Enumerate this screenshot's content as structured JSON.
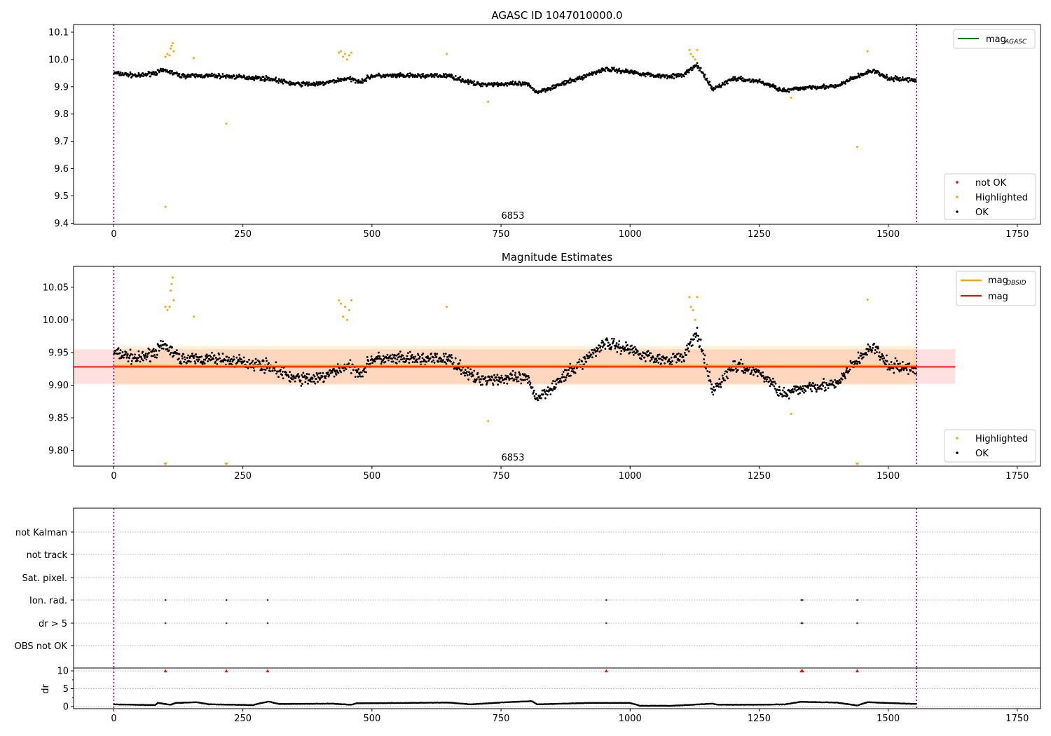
{
  "chart_data": [
    {
      "type": "scatter",
      "title": "AGASC ID 1047010000.0",
      "xlim": [
        -78,
        1795
      ],
      "ylim": [
        9.396,
        10.128
      ],
      "xticks": [
        0,
        250,
        500,
        750,
        1000,
        1250,
        1500,
        1750
      ],
      "yticks": [
        9.4,
        9.5,
        9.6,
        9.7,
        9.8,
        9.9,
        10.0,
        10.1
      ],
      "ytick_labels": [
        "9.4",
        "9.5",
        "9.6",
        "9.7",
        "9.8",
        "9.9",
        "10.0",
        "10.1"
      ],
      "obsid_label": "6853",
      "vlines": [
        0,
        1555
      ],
      "line_legend": [
        {
          "label": "mag",
          "sub": "AGASC",
          "color": "#008000"
        }
      ],
      "marker_legend": [
        {
          "label": "not OK",
          "color": "#ff0000"
        },
        {
          "label": "Highlighted",
          "color": "#ffa500"
        },
        {
          "label": "OK",
          "color": "#000000"
        }
      ],
      "trend": [
        [
          0,
          9.95
        ],
        [
          50,
          9.94
        ],
        [
          100,
          9.96
        ],
        [
          130,
          9.94
        ],
        [
          200,
          9.94
        ],
        [
          300,
          9.93
        ],
        [
          350,
          9.91
        ],
        [
          400,
          9.91
        ],
        [
          450,
          9.93
        ],
        [
          480,
          9.92
        ],
        [
          500,
          9.94
        ],
        [
          600,
          9.94
        ],
        [
          650,
          9.94
        ],
        [
          700,
          9.91
        ],
        [
          800,
          9.91
        ],
        [
          820,
          9.88
        ],
        [
          900,
          9.93
        ],
        [
          950,
          9.965
        ],
        [
          1000,
          9.955
        ],
        [
          1050,
          9.94
        ],
        [
          1100,
          9.94
        ],
        [
          1130,
          9.98
        ],
        [
          1160,
          9.89
        ],
        [
          1200,
          9.93
        ],
        [
          1250,
          9.92
        ],
        [
          1300,
          9.885
        ],
        [
          1350,
          9.9
        ],
        [
          1400,
          9.9
        ],
        [
          1430,
          9.93
        ],
        [
          1470,
          9.96
        ],
        [
          1500,
          9.93
        ],
        [
          1555,
          9.925
        ]
      ],
      "highlighted": [
        [
          100,
          10.01
        ],
        [
          104,
          10.02
        ],
        [
          108,
          10.015
        ],
        [
          110,
          10.04
        ],
        [
          112,
          10.05
        ],
        [
          114,
          10.06
        ],
        [
          116,
          10.03
        ],
        [
          155,
          10.005
        ],
        [
          218,
          9.765
        ],
        [
          100,
          9.46
        ],
        [
          436,
          10.025
        ],
        [
          440,
          10.03
        ],
        [
          444,
          10.01
        ],
        [
          448,
          10.02
        ],
        [
          452,
          10.0
        ],
        [
          456,
          10.015
        ],
        [
          460,
          10.025
        ],
        [
          645,
          10.02
        ],
        [
          725,
          9.845
        ],
        [
          1115,
          10.035
        ],
        [
          1118,
          10.02
        ],
        [
          1122,
          10.01
        ],
        [
          1126,
          10.0
        ],
        [
          1130,
          10.035
        ],
        [
          1312,
          9.86
        ],
        [
          1440,
          9.68
        ],
        [
          1460,
          10.03
        ]
      ]
    },
    {
      "type": "scatter",
      "title": "Magnitude Estimates",
      "xlim": [
        -78,
        1795
      ],
      "ylim": [
        9.776,
        10.082
      ],
      "xticks": [
        0,
        250,
        500,
        750,
        1000,
        1250,
        1500,
        1750
      ],
      "yticks": [
        9.8,
        9.85,
        9.9,
        9.95,
        10.0,
        10.05
      ],
      "ytick_labels": [
        "9.80",
        "9.85",
        "9.90",
        "9.95",
        "10.00",
        "10.05"
      ],
      "obsid_label": "6853",
      "line_legend": [
        {
          "label": "mag",
          "sub": "OBSID",
          "color": "#ffa500"
        },
        {
          "label": "mag",
          "sub": "",
          "color": "#ff0000"
        }
      ],
      "marker_legend": [
        {
          "label": "Highlighted",
          "color": "#ffa500"
        },
        {
          "label": "OK",
          "color": "#000000"
        }
      ],
      "mag": 9.928,
      "mag_band": [
        9.902,
        9.955
      ],
      "mag_obsid": 9.93,
      "mag_obsid_band": [
        9.9,
        9.96
      ],
      "below_range_markers": [
        100,
        218,
        1440
      ],
      "highlighted": [
        [
          100,
          10.02
        ],
        [
          104,
          10.015
        ],
        [
          108,
          10.02
        ],
        [
          110,
          10.045
        ],
        [
          112,
          10.055
        ],
        [
          114,
          10.065
        ],
        [
          116,
          10.03
        ],
        [
          155,
          10.005
        ],
        [
          436,
          10.03
        ],
        [
          440,
          10.025
        ],
        [
          444,
          10.005
        ],
        [
          448,
          10.02
        ],
        [
          452,
          10.0
        ],
        [
          456,
          10.015
        ],
        [
          460,
          10.03
        ],
        [
          645,
          10.02
        ],
        [
          725,
          9.845
        ],
        [
          1115,
          10.035
        ],
        [
          1118,
          10.02
        ],
        [
          1122,
          10.015
        ],
        [
          1126,
          10.0
        ],
        [
          1130,
          10.035
        ],
        [
          1312,
          9.856
        ],
        [
          1460,
          10.031
        ]
      ]
    },
    {
      "type": "scatter",
      "categories": [
        "not Kalman",
        "not track",
        "Sat. pixel.",
        "Ion. rad.",
        "dr > 5",
        "OBS not OK"
      ],
      "flags": {
        "Ion. rad.": [
          100,
          218,
          298,
          954,
          1332,
          1334,
          1440
        ],
        "dr > 5": [
          100,
          218,
          298,
          954,
          1332,
          1334,
          1440
        ]
      }
    },
    {
      "type": "scatter",
      "ylabel": "dr",
      "ylim": [
        -0.6,
        10.8
      ],
      "yticks": [
        0,
        5,
        10
      ],
      "ytick_labels": [
        "0",
        "5",
        "10"
      ],
      "xticks": [
        0,
        250,
        500,
        750,
        1000,
        1250,
        1500,
        1750
      ],
      "clipped_markers": [
        100,
        218,
        298,
        954,
        1332,
        1334,
        1440
      ],
      "trend": [
        [
          0,
          0.6
        ],
        [
          80,
          0.4
        ],
        [
          85,
          1.0
        ],
        [
          110,
          0.5
        ],
        [
          120,
          1.0
        ],
        [
          160,
          1.2
        ],
        [
          185,
          0.6
        ],
        [
          270,
          0.4
        ],
        [
          280,
          0.8
        ],
        [
          300,
          1.4
        ],
        [
          320,
          0.7
        ],
        [
          420,
          0.8
        ],
        [
          460,
          0.5
        ],
        [
          470,
          0.9
        ],
        [
          650,
          1.1
        ],
        [
          690,
          0.6
        ],
        [
          760,
          1.2
        ],
        [
          810,
          1.5
        ],
        [
          820,
          0.6
        ],
        [
          920,
          1.0
        ],
        [
          1000,
          1.0
        ],
        [
          1020,
          0.2
        ],
        [
          1080,
          0.2
        ],
        [
          1160,
          0.8
        ],
        [
          1170,
          0.5
        ],
        [
          1250,
          0.5
        ],
        [
          1300,
          0.6
        ],
        [
          1330,
          1.3
        ],
        [
          1400,
          1.1
        ],
        [
          1440,
          0.3
        ],
        [
          1460,
          1.2
        ],
        [
          1555,
          0.7
        ]
      ]
    }
  ]
}
